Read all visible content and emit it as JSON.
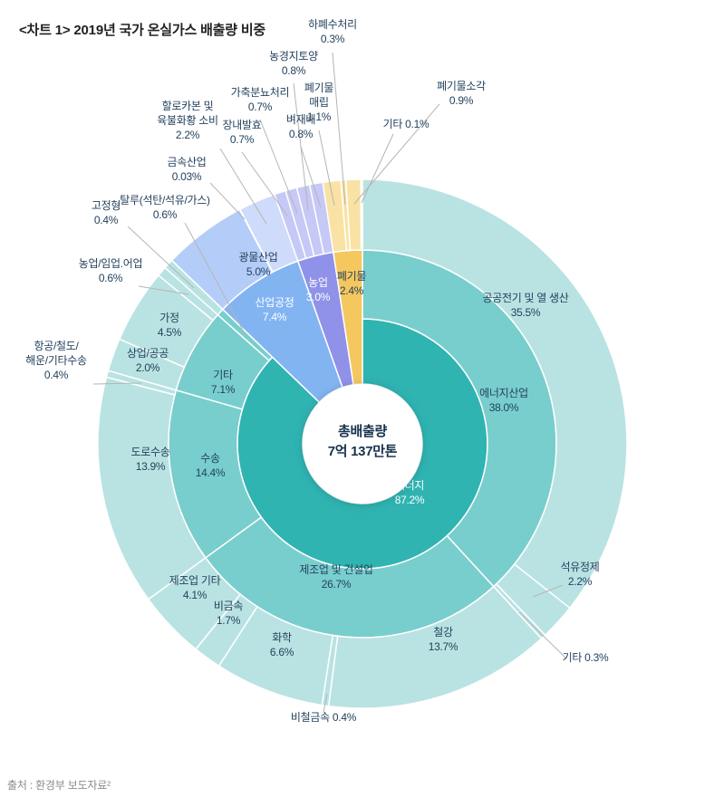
{
  "header": {
    "title": "<차트 1> 2019년 국가 온실가스 배출량 비중"
  },
  "footer": {
    "source": "출처 : 환경부 보도자료²"
  },
  "palette": {
    "background": "#ffffff",
    "label_text": "#24425e",
    "label_text_light": "#ffffff",
    "leader_line": "#b5b5b5",
    "energy_inner": "#2fb4b2",
    "energy_mid": "#78cecd",
    "energy_outer": "#b9e3e2",
    "industry": "#82b4f2",
    "agriculture": "#8f92e8",
    "waste": "#f5c75f"
  },
  "chart_data": {
    "type": "sunburst",
    "title": "2019년 국가 온실가스 배출량 비중",
    "unit": "%",
    "center": {
      "title": "총배출량",
      "value": "7억 137만톤"
    },
    "nodes": [
      {
        "id": "energy",
        "name": "에너지",
        "value": 87.2,
        "pct": "87.2%",
        "color": "#2fb4b2",
        "children": [
          {
            "id": "energy-industries",
            "name": "에너지산업",
            "value": 38.0,
            "pct": "38.0%",
            "color": "#78cecd",
            "children": [
              {
                "id": "public-electricity",
                "name": "공공전기 및 열 생산",
                "value": 35.5,
                "pct": "35.5%",
                "color": "#b9e3e2"
              },
              {
                "id": "refinery",
                "name": "석유정제",
                "value": 2.2,
                "pct": "2.2%",
                "color": "#b9e3e2"
              },
              {
                "id": "energy-ind-other",
                "name": "기타",
                "value": 0.3,
                "pct": "0.3%",
                "color": "#b9e3e2"
              }
            ]
          },
          {
            "id": "manufacturing",
            "name": "제조업 및 건설업",
            "value": 26.7,
            "pct": "26.7%",
            "color": "#78cecd",
            "children": [
              {
                "id": "steel",
                "name": "철강",
                "value": 13.7,
                "pct": "13.7%",
                "color": "#b9e3e2"
              },
              {
                "id": "nonferrous",
                "name": "비철금속",
                "value": 0.4,
                "pct": "0.4%",
                "color": "#b9e3e2"
              },
              {
                "id": "chemical",
                "name": "화학",
                "value": 6.6,
                "pct": "6.6%",
                "color": "#b9e3e2"
              },
              {
                "id": "nonmetal",
                "name": "비금속",
                "value": 1.7,
                "pct": "1.7%",
                "color": "#b9e3e2"
              },
              {
                "id": "manufacturing-other",
                "name": "제조업 기타",
                "value": 4.1,
                "pct": "4.1%",
                "color": "#b9e3e2"
              }
            ]
          },
          {
            "id": "transport",
            "name": "수송",
            "value": 14.4,
            "pct": "14.4%",
            "color": "#78cecd",
            "children": [
              {
                "id": "road",
                "name": "도로수송",
                "value": 13.9,
                "pct": "13.9%",
                "color": "#b9e3e2"
              },
              {
                "id": "air-rail-ship",
                "name": "항공/철도/해운/기타수송",
                "value": 0.4,
                "pct": "0.4%",
                "color": "#b9e3e2"
              }
            ]
          },
          {
            "id": "energy-other",
            "name": "기타",
            "value": 7.1,
            "pct": "7.1%",
            "color": "#78cecd",
            "children": [
              {
                "id": "commercial-public",
                "name": "상업/공공",
                "value": 2.0,
                "pct": "2.0%",
                "color": "#b9e3e2"
              },
              {
                "id": "residential",
                "name": "가정",
                "value": 4.5,
                "pct": "4.5%",
                "color": "#b9e3e2"
              },
              {
                "id": "agri-forestry-fishery",
                "name": "농업/임업.어업",
                "value": 0.6,
                "pct": "0.6%",
                "color": "#b9e3e2"
              }
            ]
          },
          {
            "id": "fugitive",
            "name": "탈루(석탄/석유/가스)",
            "value": 0.6,
            "pct": "0.6%",
            "color": "#78cecd",
            "children": [
              {
                "id": "stationary",
                "name": "고정형",
                "value": 0.4,
                "pct": "0.4%",
                "color": "#b9e3e2"
              }
            ]
          }
        ]
      },
      {
        "id": "industrial-process",
        "name": "산업공정",
        "value": 7.4,
        "pct": "7.4%",
        "color": "#82b4f2",
        "children": [
          {
            "id": "mineral",
            "name": "광물산업",
            "value": 5.0,
            "pct": "5.0%",
            "color": "#b4cdf8"
          },
          {
            "id": "metal",
            "name": "금속산업",
            "value": 0.03,
            "pct": "0.03%",
            "color": "#c6d6fa"
          },
          {
            "id": "halocarbon",
            "name": "할로카본 및 육불화황 소비",
            "value": 2.2,
            "pct": "2.2%",
            "color": "#cfdbfb"
          }
        ]
      },
      {
        "id": "agriculture",
        "name": "농업",
        "value": 3.0,
        "pct": "3.0%",
        "color": "#8f92e8",
        "children": [
          {
            "id": "enteric",
            "name": "장내발효",
            "value": 0.7,
            "pct": "0.7%",
            "color": "#c6c8f6"
          },
          {
            "id": "manure",
            "name": "가축분뇨처리",
            "value": 0.7,
            "pct": "0.7%",
            "color": "#c6c8f6"
          },
          {
            "id": "soil",
            "name": "농경지토양",
            "value": 0.8,
            "pct": "0.8%",
            "color": "#c6c8f6"
          },
          {
            "id": "rice",
            "name": "벼재배",
            "value": 0.8,
            "pct": "0.8%",
            "color": "#c6c8f6"
          }
        ]
      },
      {
        "id": "waste",
        "name": "폐기물",
        "value": 2.4,
        "pct": "2.4%",
        "color": "#f5c75f",
        "children": [
          {
            "id": "landfill",
            "name": "폐기물 매립",
            "value": 1.1,
            "pct": "1.1%",
            "color": "#f9e2a3"
          },
          {
            "id": "wastewater",
            "name": "하폐수처리",
            "value": 0.3,
            "pct": "0.3%",
            "color": "#f9e2a3"
          },
          {
            "id": "incineration",
            "name": "폐기물소각",
            "value": 0.9,
            "pct": "0.9%",
            "color": "#f9e2a3"
          },
          {
            "id": "waste-other",
            "name": "기타",
            "value": 0.1,
            "pct": "0.1%",
            "color": "#f9e2a3"
          }
        ]
      }
    ]
  }
}
